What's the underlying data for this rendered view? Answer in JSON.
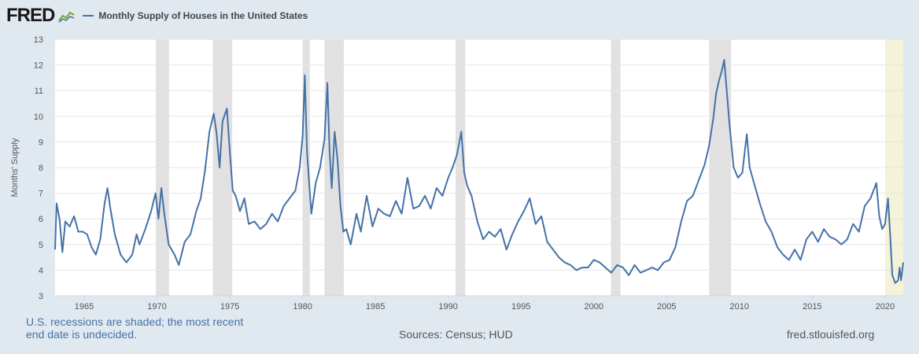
{
  "header": {
    "logo_text": "FRED",
    "legend_label": "Monthly Supply of Houses in the United States"
  },
  "footer": {
    "note": "U.S. recessions are shaded; the most recent end date is undecided.",
    "sources": "Sources: Census; HUD",
    "site": "fred.stlouisfed.org"
  },
  "colors": {
    "line": "#4572a7",
    "recession": "#e1e1e1",
    "recession_undecided": "#f4f2d9",
    "background": "#e1e9f0",
    "plot": "#ffffff",
    "grid": "#e6e6e6"
  },
  "chart_data": {
    "type": "line",
    "ylabel": "Months' Supply",
    "xlim": [
      1963.0,
      2021.25
    ],
    "ylim": [
      3,
      13
    ],
    "yticks": [
      3,
      4,
      5,
      6,
      7,
      8,
      9,
      10,
      11,
      12,
      13
    ],
    "xticks": [
      1965,
      1970,
      1975,
      1980,
      1985,
      1990,
      1995,
      2000,
      2005,
      2010,
      2015,
      2020
    ],
    "grid": "horizontal",
    "recessions": [
      {
        "start": 1969.92,
        "end": 1970.83
      },
      {
        "start": 1973.83,
        "end": 1975.17
      },
      {
        "start": 1980.0,
        "end": 1980.5
      },
      {
        "start": 1981.5,
        "end": 1982.83
      },
      {
        "start": 1990.5,
        "end": 1991.17
      },
      {
        "start": 2001.17,
        "end": 2001.83
      },
      {
        "start": 2007.92,
        "end": 2009.42
      },
      {
        "start": 2020.0,
        "end": 2021.25,
        "undecided": true
      }
    ],
    "series": [
      {
        "x": [
          1963.0,
          1963.1,
          1963.3,
          1963.5,
          1963.7,
          1964.0,
          1964.3,
          1964.6,
          1964.9,
          1965.2,
          1965.5,
          1965.8,
          1966.1,
          1966.4,
          1966.6,
          1966.8,
          1967.1,
          1967.5,
          1967.9,
          1968.3,
          1968.6,
          1968.8,
          1969.2,
          1969.6,
          1969.9,
          1970.1,
          1970.3,
          1970.5,
          1970.8,
          1971.2,
          1971.5,
          1971.9,
          1972.3,
          1972.7,
          1973.0,
          1973.3,
          1973.6,
          1973.9,
          1974.1,
          1974.3,
          1974.5,
          1974.8,
          1975.0,
          1975.2,
          1975.4,
          1975.7,
          1976.0,
          1976.3,
          1976.7,
          1977.1,
          1977.5,
          1977.9,
          1978.3,
          1978.7,
          1979.1,
          1979.5,
          1979.8,
          1980.0,
          1980.15,
          1980.3,
          1980.6,
          1980.9,
          1981.2,
          1981.5,
          1981.7,
          1981.85,
          1982.0,
          1982.2,
          1982.4,
          1982.6,
          1982.8,
          1983.0,
          1983.3,
          1983.7,
          1984.0,
          1984.4,
          1984.8,
          1985.2,
          1985.6,
          1986.0,
          1986.4,
          1986.8,
          1987.2,
          1987.6,
          1988.0,
          1988.4,
          1988.8,
          1989.2,
          1989.6,
          1990.0,
          1990.3,
          1990.6,
          1990.9,
          1991.1,
          1991.3,
          1991.6,
          1992.0,
          1992.4,
          1992.8,
          1993.2,
          1993.6,
          1994.0,
          1994.4,
          1994.8,
          1995.2,
          1995.6,
          1996.0,
          1996.4,
          1996.8,
          1997.2,
          1997.6,
          1998.0,
          1998.4,
          1998.8,
          1999.2,
          1999.6,
          2000.0,
          2000.4,
          2000.8,
          2001.2,
          2001.6,
          2002.0,
          2002.4,
          2002.8,
          2003.2,
          2003.6,
          2004.0,
          2004.4,
          2004.8,
          2005.2,
          2005.6,
          2006.0,
          2006.4,
          2006.8,
          2007.2,
          2007.6,
          2007.9,
          2008.2,
          2008.4,
          2008.6,
          2008.8,
          2008.95,
          2009.1,
          2009.3,
          2009.6,
          2009.9,
          2010.2,
          2010.4,
          2010.5,
          2010.7,
          2011.0,
          2011.4,
          2011.8,
          2012.2,
          2012.6,
          2013.0,
          2013.4,
          2013.8,
          2014.2,
          2014.6,
          2015.0,
          2015.4,
          2015.8,
          2016.2,
          2016.6,
          2017.0,
          2017.4,
          2017.8,
          2018.2,
          2018.6,
          2019.0,
          2019.4,
          2019.6,
          2019.8,
          2020.0,
          2020.2,
          2020.35,
          2020.5,
          2020.7,
          2020.9,
          2021.0,
          2021.1,
          2021.25
        ],
        "values": [
          4.8,
          6.6,
          6.0,
          4.7,
          5.9,
          5.7,
          6.1,
          5.5,
          5.5,
          5.4,
          4.9,
          4.6,
          5.2,
          6.6,
          7.2,
          6.4,
          5.4,
          4.6,
          4.3,
          4.6,
          5.4,
          5.0,
          5.6,
          6.3,
          7.0,
          6.0,
          7.2,
          6.2,
          5.0,
          4.6,
          4.2,
          5.1,
          5.4,
          6.3,
          6.8,
          7.9,
          9.4,
          10.1,
          9.3,
          8.0,
          9.8,
          10.3,
          8.6,
          7.1,
          6.9,
          6.3,
          6.8,
          5.8,
          5.9,
          5.6,
          5.8,
          6.2,
          5.9,
          6.5,
          6.8,
          7.1,
          8.0,
          9.2,
          11.6,
          8.6,
          6.2,
          7.4,
          8.0,
          9.1,
          11.3,
          8.7,
          7.2,
          9.4,
          8.3,
          6.5,
          5.5,
          5.6,
          5.0,
          6.2,
          5.5,
          6.9,
          5.7,
          6.4,
          6.2,
          6.1,
          6.7,
          6.2,
          7.6,
          6.4,
          6.5,
          6.9,
          6.4,
          7.2,
          6.9,
          7.6,
          8.0,
          8.5,
          9.4,
          7.8,
          7.3,
          6.9,
          5.9,
          5.2,
          5.5,
          5.3,
          5.6,
          4.8,
          5.4,
          5.9,
          6.3,
          6.8,
          5.8,
          6.1,
          5.1,
          4.8,
          4.5,
          4.3,
          4.2,
          4.0,
          4.1,
          4.1,
          4.4,
          4.3,
          4.1,
          3.9,
          4.2,
          4.1,
          3.8,
          4.2,
          3.9,
          4.0,
          4.1,
          4.0,
          4.3,
          4.4,
          4.9,
          5.9,
          6.7,
          6.9,
          7.5,
          8.1,
          8.8,
          9.9,
          10.9,
          11.4,
          11.8,
          12.2,
          11.2,
          9.8,
          8.0,
          7.6,
          7.8,
          8.8,
          9.3,
          8.0,
          7.4,
          6.6,
          5.9,
          5.5,
          4.9,
          4.6,
          4.4,
          4.8,
          4.4,
          5.2,
          5.5,
          5.1,
          5.6,
          5.3,
          5.2,
          5.0,
          5.2,
          5.8,
          5.5,
          6.5,
          6.8,
          7.4,
          6.1,
          5.6,
          5.8,
          6.8,
          5.4,
          3.8,
          3.5,
          3.6,
          4.1,
          3.6,
          4.3
        ]
      }
    ]
  }
}
